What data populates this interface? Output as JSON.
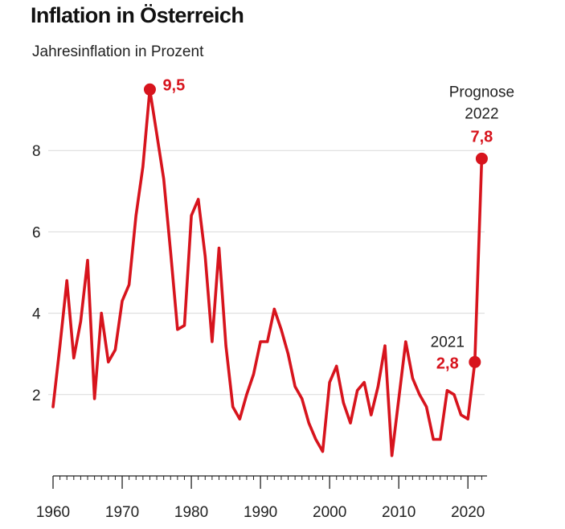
{
  "chart_data": {
    "type": "line",
    "title": "Inflation in Österreich",
    "subtitle": "Jahresinflation in Prozent",
    "xlim": [
      1960,
      2023
    ],
    "ylim": [
      0,
      10
    ],
    "x_ticks": [
      1960,
      1970,
      1980,
      1990,
      2000,
      2010,
      2020
    ],
    "y_ticks": [
      2,
      4,
      6,
      8
    ],
    "grid": "horizontal",
    "color": "#d7141d",
    "series": [
      {
        "x": [
          1960,
          1961,
          1962,
          1963,
          1964,
          1965,
          1966,
          1967,
          1968,
          1969,
          1970,
          1971,
          1972,
          1973,
          1974,
          1975,
          1976,
          1977,
          1978,
          1979,
          1980,
          1981,
          1982,
          1983,
          1984,
          1985,
          1986,
          1987,
          1988,
          1989,
          1990,
          1991,
          1992,
          1993,
          1994,
          1995,
          1996,
          1997,
          1998,
          1999,
          2000,
          2001,
          2002,
          2003,
          2004,
          2005,
          2006,
          2007,
          2008,
          2009,
          2010,
          2011,
          2012,
          2013,
          2014,
          2015,
          2016,
          2017,
          2018,
          2019,
          2020,
          2021,
          2022
        ],
        "values": [
          1.7,
          3.2,
          4.8,
          2.9,
          3.8,
          5.3,
          1.9,
          4.0,
          2.8,
          3.1,
          4.3,
          4.7,
          6.4,
          7.6,
          9.5,
          8.4,
          7.3,
          5.5,
          3.6,
          3.7,
          6.4,
          6.8,
          5.4,
          3.3,
          5.6,
          3.2,
          1.7,
          1.4,
          2.0,
          2.5,
          3.3,
          3.3,
          4.1,
          3.6,
          3.0,
          2.2,
          1.9,
          1.3,
          0.9,
          0.6,
          2.3,
          2.7,
          1.8,
          1.3,
          2.1,
          2.3,
          1.5,
          2.2,
          3.2,
          0.5,
          1.9,
          3.3,
          2.4,
          2.0,
          1.7,
          0.9,
          0.9,
          2.1,
          2.0,
          1.5,
          1.4,
          2.8,
          7.8
        ]
      }
    ],
    "annotations": {
      "peak": {
        "x": 1974,
        "y": 9.5,
        "label": "9,5"
      },
      "y2021": {
        "x": 2021,
        "y": 2.8,
        "label": "2,8",
        "caption": "2021"
      },
      "y2022": {
        "x": 2022,
        "y": 7.8,
        "label": "7,8",
        "caption_line1": "Prognose",
        "caption_line2": "2022"
      }
    }
  }
}
